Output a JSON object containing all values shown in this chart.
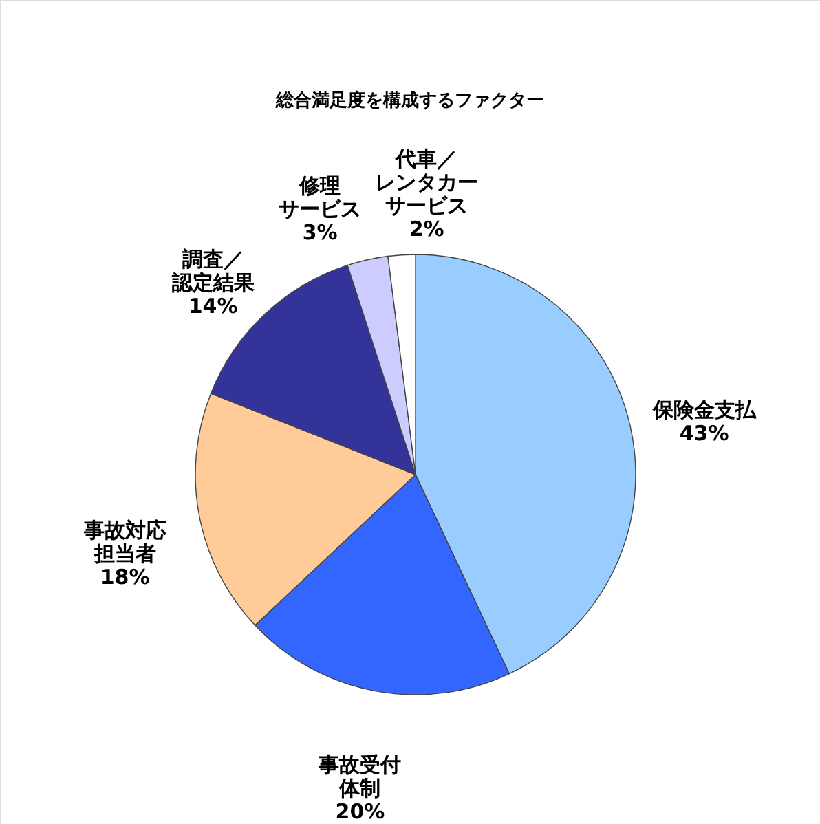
{
  "chart_data": {
    "type": "pie",
    "title": "総合満足度を構成するファクター",
    "categories": [
      "保険金支払",
      "事故受付体制",
      "事故対応担当者",
      "調査／認定結果",
      "修理サービス",
      "代車／レンタカーサービス"
    ],
    "values": [
      43,
      20,
      18,
      14,
      3,
      2
    ],
    "value_labels": [
      "43%",
      "20%",
      "18%",
      "14%",
      "3%",
      "2%"
    ],
    "colors": [
      "#99ccff",
      "#3366ff",
      "#ffcc99",
      "#333399",
      "#ccccff",
      "#ffffff"
    ],
    "legend": false
  }
}
